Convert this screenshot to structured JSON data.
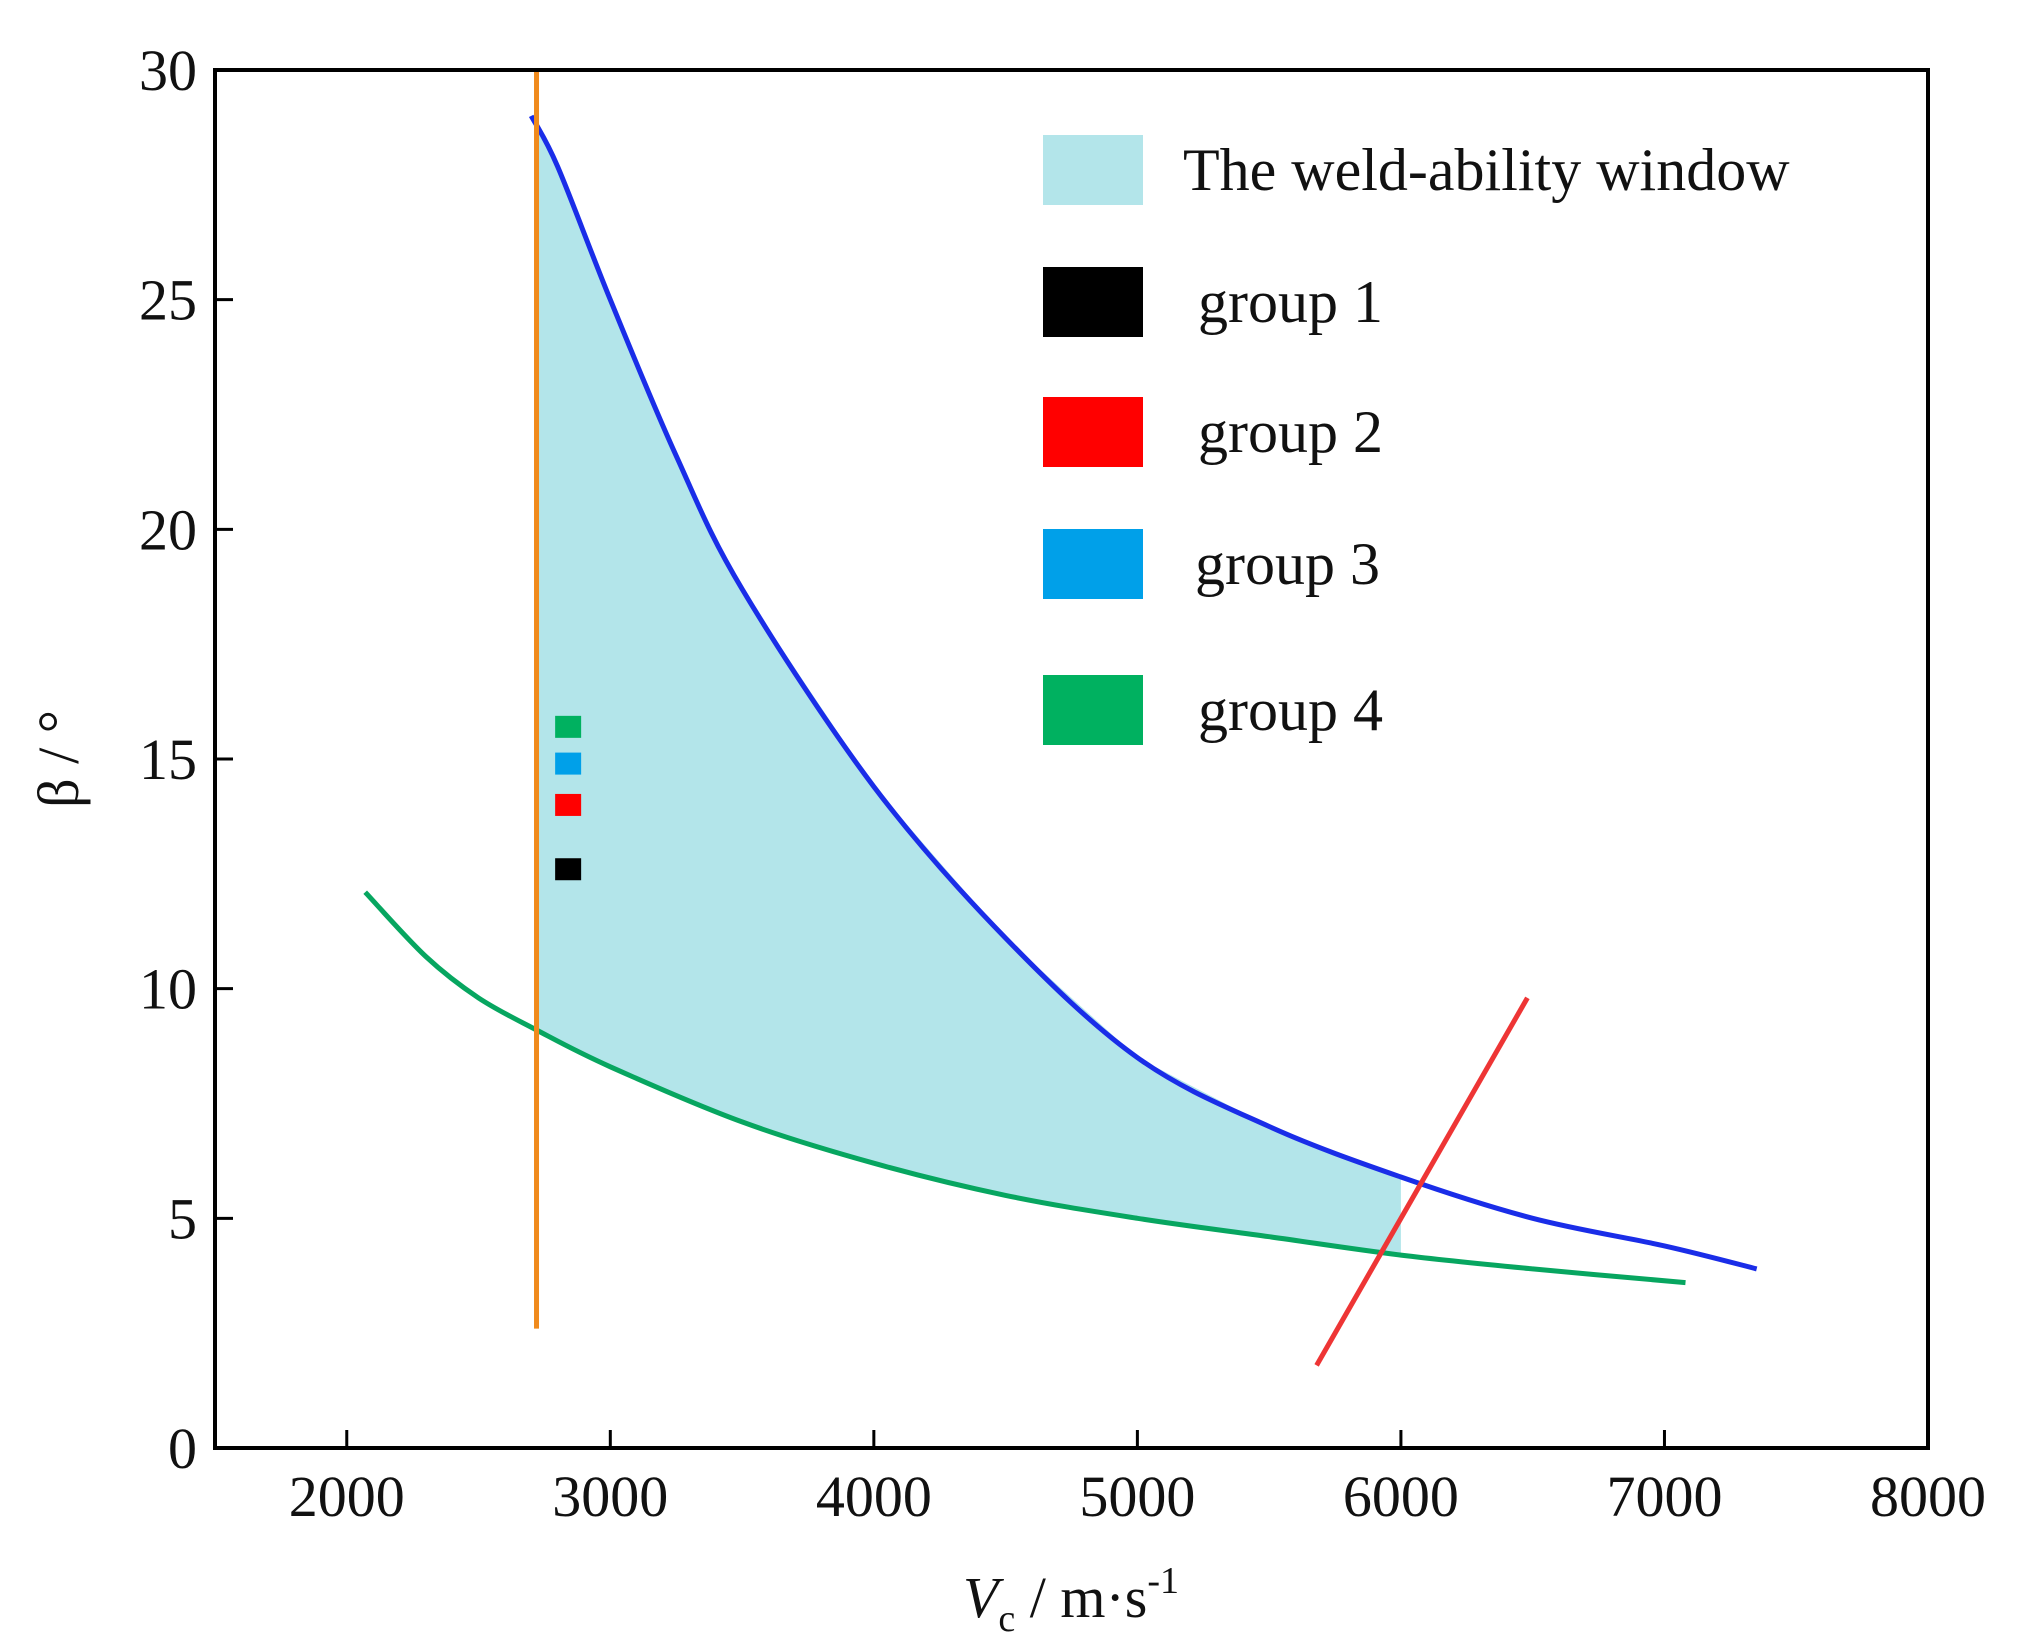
{
  "chart_data": {
    "type": "line",
    "xlabel": {
      "main": "V",
      "sub": "c",
      "unit": " / m·s",
      "sup": "-1"
    },
    "ylabel": "β / °",
    "xlim": [
      1500,
      8000
    ],
    "ylim": [
      0,
      30
    ],
    "xticks": [
      2000,
      3000,
      4000,
      5000,
      6000,
      7000,
      8000
    ],
    "yticks": [
      0,
      5,
      10,
      15,
      20,
      25,
      30
    ],
    "window": {
      "label": "The weld-ability window",
      "color": "#b3e5ea",
      "x_start": 2720,
      "x_end": 6000
    },
    "series": [
      {
        "name": "upper limit (blue curve)",
        "color": "#1a2de8",
        "x": [
          2700,
          2800,
          3000,
          3250,
          3500,
          4000,
          4500,
          5000,
          5500,
          6000,
          6500,
          7000,
          7350
        ],
        "y": [
          29.0,
          27.9,
          25.0,
          21.6,
          18.7,
          14.4,
          11.1,
          8.5,
          7.0,
          5.9,
          5.0,
          4.4,
          3.9
        ]
      },
      {
        "name": "lower limit (green curve)",
        "color": "#07a660",
        "x": [
          2070,
          2300,
          2500,
          2720,
          3000,
          3500,
          4000,
          4500,
          5000,
          5500,
          6000,
          6500,
          7080
        ],
        "y": [
          12.1,
          10.7,
          9.8,
          9.1,
          8.3,
          7.1,
          6.2,
          5.5,
          5.0,
          4.6,
          4.2,
          3.9,
          3.6
        ]
      },
      {
        "name": "orange vertical line",
        "color": "#f08a1c",
        "x": [
          2720,
          2720
        ],
        "y": [
          2.6,
          30.0
        ]
      },
      {
        "name": "red line",
        "color": "#ee3535",
        "x": [
          5680,
          6480
        ],
        "y": [
          1.8,
          9.8
        ]
      }
    ],
    "points": [
      {
        "group": "group 1",
        "x": 2840,
        "y": 12.6,
        "color": "#000000"
      },
      {
        "group": "group 2",
        "x": 2840,
        "y": 14.0,
        "color": "#ff0000"
      },
      {
        "group": "group 3",
        "x": 2840,
        "y": 14.9,
        "color": "#00a0e9"
      },
      {
        "group": "group 4",
        "x": 2840,
        "y": 15.7,
        "color": "#00b160"
      }
    ],
    "legend": {
      "position": "top-right",
      "entries": [
        {
          "label": "The weld-ability window",
          "color": "#b3e5ea"
        },
        {
          "label": "group 1",
          "color": "#000000"
        },
        {
          "label": "group 2",
          "color": "#ff0000"
        },
        {
          "label": "group 3",
          "color": "#00a0e9"
        },
        {
          "label": "group 4",
          "color": "#00b160"
        }
      ]
    }
  }
}
